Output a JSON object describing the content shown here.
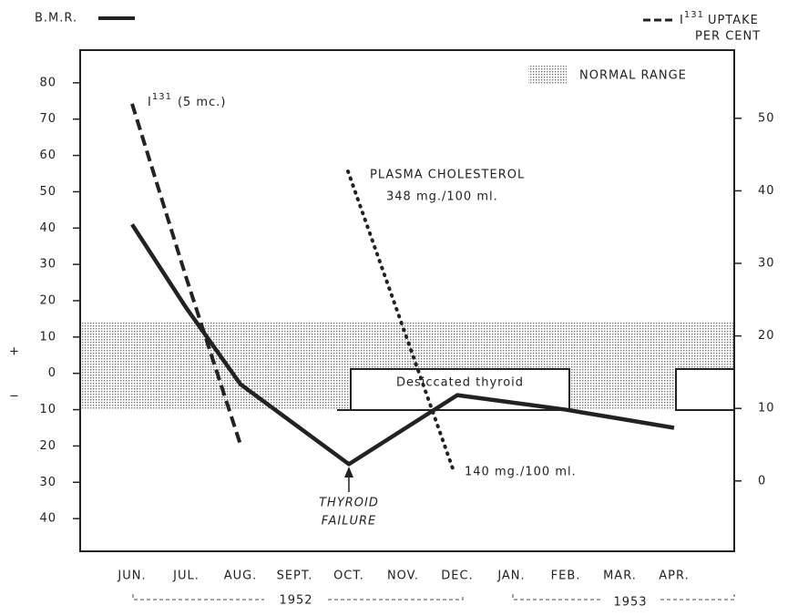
{
  "chart_data": {
    "type": "line",
    "left_label": "B.M.R.",
    "right_label": {
      "prefix": "I",
      "superscript": "131",
      "text": "UPTAKE",
      "line2": "PER CENT"
    },
    "categories": [
      "JUN.",
      "JUL.",
      "AUG.",
      "SEPT.",
      "OCT.",
      "NOV.",
      "DEC.",
      "JAN.",
      "FEB.",
      "MAR.",
      "APR."
    ],
    "series": [
      {
        "name": "B.M.R.",
        "color": "#222222",
        "style": "solid",
        "values": [
          41,
          18,
          -3,
          -14,
          -25,
          -15.5,
          -6,
          -8,
          -10,
          -12.5,
          -15
        ]
      },
      {
        "name": "I131 UPTAKE",
        "color": "#222222",
        "style": "dashed",
        "axis": "y2",
        "values": [
          52,
          28,
          5,
          null,
          null,
          null,
          null,
          null,
          null,
          null,
          null
        ]
      }
    ],
    "ylim": [
      -49,
      89
    ],
    "yticks": [
      80,
      70,
      60,
      50,
      40,
      30,
      20,
      10,
      0,
      {
        "value": -10,
        "label": "10"
      },
      {
        "value": -20,
        "label": "20"
      },
      {
        "value": -30,
        "label": "30"
      },
      {
        "value": -40,
        "label": "40"
      }
    ],
    "y2lim": [
      -9.7,
      59.4
    ],
    "y2ticks": [
      0,
      10,
      20,
      30,
      40,
      50
    ],
    "sign_plus": "+",
    "sign_minus": "−",
    "normal_range": [
      -10,
      14
    ],
    "normal_range_label": "NORMAL RANGE",
    "annotations": {
      "dose": {
        "prefix": "I",
        "superscript": "131",
        "text": "(5 mc.)"
      },
      "cholesterol_title": "PLASMA CHOLESTEROL",
      "cholesterol_start": "348 mg./100 ml.",
      "cholesterol_end": "140 mg./100 ml.",
      "failure_1": "THYROID",
      "failure_2": "FAILURE",
      "therapy": "Desiccated thyroid"
    },
    "years": [
      "1952",
      "1953"
    ]
  }
}
